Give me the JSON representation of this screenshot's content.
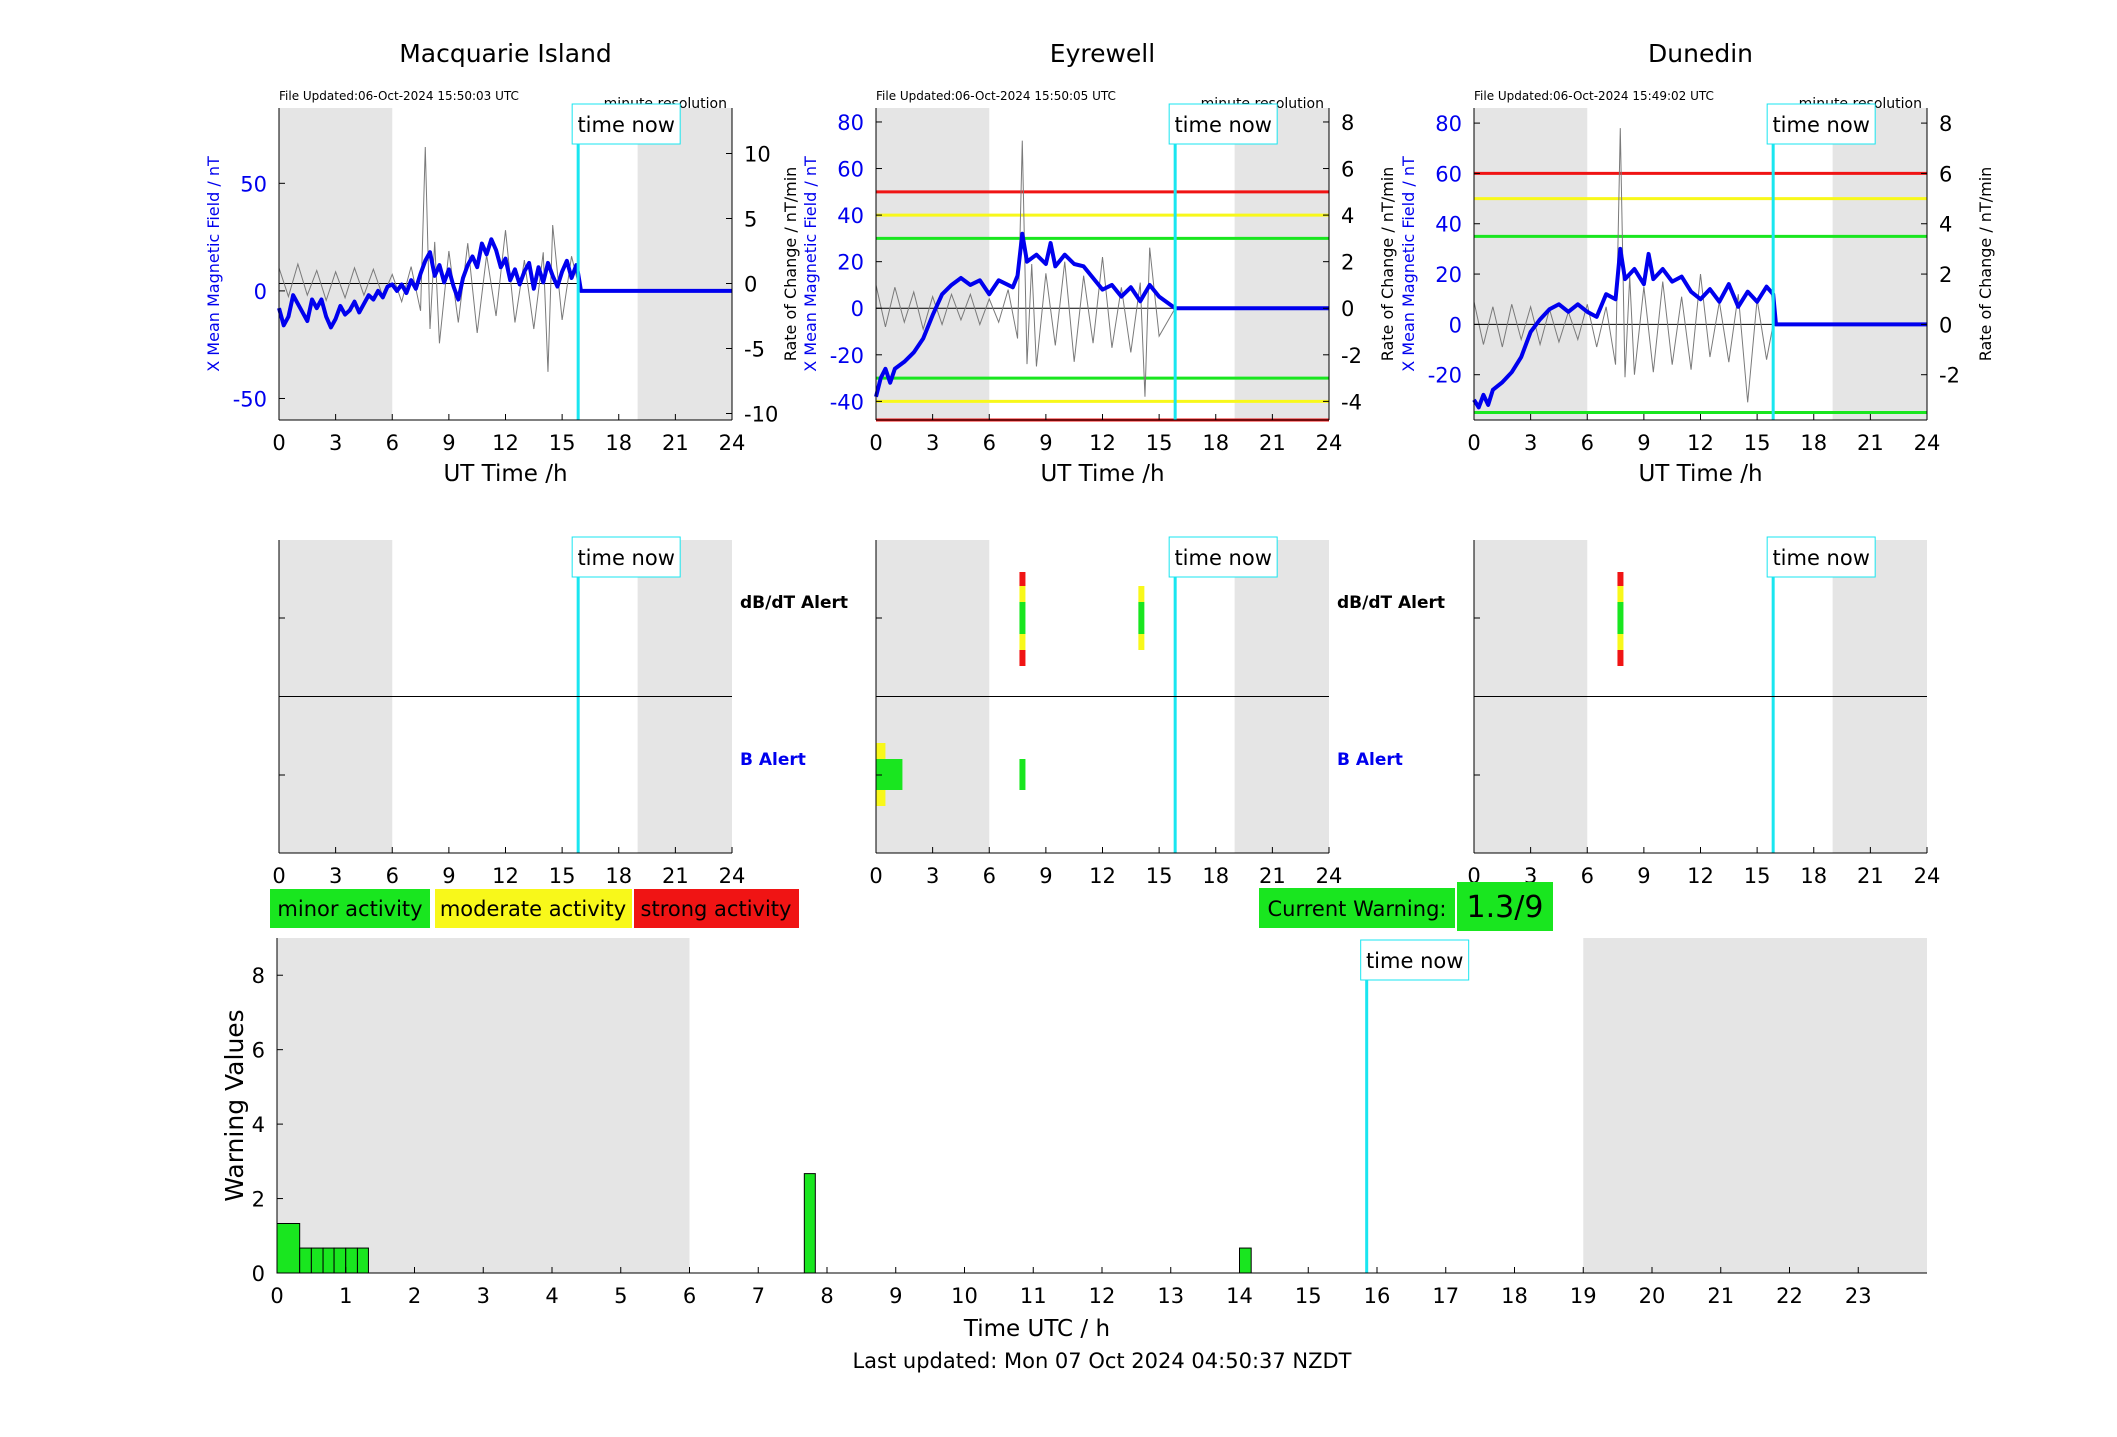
{
  "colors": {
    "night_shade": "#e5e5e5",
    "time_now_line": "#19e6f0",
    "field_line": "#0000ee",
    "rate_line": "#7a7a7a",
    "minor": "#19e61f",
    "moderate": "#f8f81a",
    "strong": "#f01414",
    "axis": "#000000"
  },
  "time_now_label": "time now",
  "stations": [
    {
      "title": "Macquarie Island",
      "file_updated": "File Updated:06-Oct-2024 15:50:03 UTC",
      "resolution": "minute resolution",
      "xlabel": "UT Time /h",
      "ylabel_left": "X Mean Magnetic Field / nT",
      "ylabel_right": "Rate of Change / nT/min",
      "xticks": [
        "0",
        "3",
        "6",
        "9",
        "12",
        "15",
        "18",
        "21",
        "24"
      ],
      "left_ticks": [
        "-50",
        "0",
        "50"
      ],
      "right_ticks": [
        "-10",
        "-5",
        "0",
        "5",
        "10"
      ],
      "alert_xticks": [
        "0",
        "3",
        "6",
        "9",
        "12",
        "15",
        "18",
        "21",
        "24"
      ],
      "dbdt_label": "dB/dT Alert",
      "b_label": "B Alert"
    },
    {
      "title": "Eyrewell",
      "file_updated": "File Updated:06-Oct-2024 15:50:05 UTC",
      "resolution": "minute resolution",
      "xlabel": "UT Time /h",
      "ylabel_left": "X Mean Magnetic Field / nT",
      "ylabel_right": "Rate of Change / nT/min",
      "xticks": [
        "0",
        "3",
        "6",
        "9",
        "12",
        "15",
        "18",
        "21",
        "24"
      ],
      "left_ticks": [
        "-40",
        "-20",
        "0",
        "20",
        "40",
        "60",
        "80"
      ],
      "right_ticks": [
        "-4",
        "-2",
        "0",
        "2",
        "4",
        "6",
        "8"
      ],
      "alert_xticks": [
        "0",
        "3",
        "6",
        "9",
        "12",
        "15",
        "18",
        "21",
        "24"
      ],
      "dbdt_label": "dB/dT Alert",
      "b_label": "B Alert"
    },
    {
      "title": "Dunedin",
      "file_updated": "File Updated:06-Oct-2024 15:49:02 UTC",
      "resolution": "minute resolution",
      "xlabel": "UT Time /h",
      "ylabel_left": "X Mean Magnetic Field / nT",
      "ylabel_right": "Rate of Change / nT/min",
      "xticks": [
        "0",
        "3",
        "6",
        "9",
        "12",
        "15",
        "18",
        "21",
        "24"
      ],
      "left_ticks": [
        "-20",
        "0",
        "20",
        "40",
        "60",
        "80"
      ],
      "right_ticks": [
        "-2",
        "0",
        "2",
        "4",
        "6",
        "8"
      ],
      "alert_xticks": [
        "0",
        "3",
        "6",
        "9",
        "12",
        "15",
        "18",
        "21",
        "24"
      ],
      "dbdt_label": "",
      "b_label": ""
    }
  ],
  "legend": {
    "minor": "minor activity",
    "moderate": "moderate activity",
    "strong": "strong activity"
  },
  "current_warning": {
    "label": "Current Warning:",
    "value": "1.3/9"
  },
  "bottom": {
    "ylabel": "Warning Values",
    "xlabel": "Time UTC / h",
    "last_updated": "Last updated: Mon 07 Oct 2024 04:50:37 NZDT",
    "xticks": [
      "0",
      "1",
      "2",
      "3",
      "4",
      "5",
      "6",
      "7",
      "8",
      "9",
      "10",
      "11",
      "12",
      "13",
      "14",
      "15",
      "16",
      "17",
      "18",
      "19",
      "20",
      "21",
      "22",
      "23"
    ],
    "yticks": [
      "0",
      "2",
      "4",
      "6",
      "8"
    ]
  },
  "chart_data": [
    {
      "type": "line",
      "title": "Macquarie Island",
      "xlabel": "UT Time /h",
      "ylabel": "X Mean Magnetic Field / nT",
      "y2label": "Rate of Change / nT/min",
      "xlim": [
        0,
        24
      ],
      "ylim": [
        -60,
        85
      ],
      "y2lim": [
        -10.5,
        13.5
      ],
      "night_shading": [
        [
          0,
          6
        ],
        [
          19,
          24
        ]
      ],
      "time_now": 15.85,
      "thresholds": [],
      "series": [
        {
          "name": "X Mean Magnetic Field / nT",
          "x": [
            0,
            0.25,
            0.5,
            0.75,
            1,
            1.25,
            1.5,
            1.75,
            2,
            2.25,
            2.5,
            2.75,
            3,
            3.25,
            3.5,
            3.75,
            4,
            4.25,
            4.5,
            4.75,
            5,
            5.25,
            5.5,
            5.75,
            6,
            6.25,
            6.5,
            6.75,
            7,
            7.25,
            7.5,
            7.75,
            8,
            8.25,
            8.5,
            8.75,
            9,
            9.25,
            9.5,
            9.75,
            10,
            10.25,
            10.5,
            10.75,
            11,
            11.25,
            11.5,
            11.75,
            12,
            12.25,
            12.5,
            12.75,
            13,
            13.25,
            13.5,
            13.75,
            14,
            14.25,
            14.5,
            14.75,
            15,
            15.25,
            15.5,
            15.75,
            15.85,
            16,
            24
          ],
          "y": [
            -8,
            -16,
            -12,
            -2,
            -6,
            -10,
            -14,
            -4,
            -8,
            -4,
            -12,
            -17,
            -13,
            -7,
            -11,
            -9,
            -5,
            -10,
            -6,
            -2,
            -4,
            0,
            -3,
            2,
            3,
            0,
            3,
            -1,
            5,
            1,
            8,
            14,
            18,
            7,
            12,
            4,
            10,
            2,
            -4,
            6,
            12,
            16,
            11,
            22,
            17,
            24,
            19,
            11,
            15,
            5,
            10,
            3,
            9,
            13,
            1,
            11,
            4,
            13,
            7,
            2,
            9,
            14,
            6,
            12,
            8,
            0,
            0
          ]
        },
        {
          "name": "Rate of Change / nT/min",
          "x": [
            0,
            0.5,
            1,
            1.5,
            2,
            2.5,
            3,
            3.5,
            4,
            4.5,
            5,
            5.5,
            6,
            6.5,
            7,
            7.5,
            7.75,
            8,
            8.25,
            8.5,
            9,
            9.5,
            10,
            10.5,
            11,
            11.5,
            12,
            12.5,
            13,
            13.5,
            14,
            14.25,
            14.5,
            15,
            15.5,
            15.85
          ],
          "y": [
            1.2,
            -1.0,
            1.5,
            -0.9,
            1.0,
            -1.3,
            0.9,
            -1.1,
            1.2,
            -0.9,
            1.1,
            -1.0,
            0.7,
            -1.4,
            1.3,
            -2.1,
            10.5,
            -3.5,
            3.2,
            -4.6,
            2.5,
            -3.0,
            3.1,
            -3.8,
            2.2,
            -2.5,
            4.1,
            -3.0,
            1.8,
            -3.5,
            2.4,
            -6.8,
            4.5,
            -2.8,
            2.1,
            0
          ]
        }
      ]
    },
    {
      "type": "line",
      "title": "Eyrewell",
      "xlabel": "UT Time /h",
      "ylabel": "X Mean Magnetic Field / nT",
      "y2label": "Rate of Change / nT/min",
      "xlim": [
        0,
        24
      ],
      "ylim": [
        -48,
        86
      ],
      "y2lim": [
        -4.8,
        8.6
      ],
      "night_shading": [
        [
          0,
          6
        ],
        [
          19,
          24
        ]
      ],
      "time_now": 15.85,
      "thresholds": [
        {
          "value": 50,
          "level": "strong"
        },
        {
          "value": 40,
          "level": "moderate"
        },
        {
          "value": 30,
          "level": "minor"
        },
        {
          "value": -30,
          "level": "minor"
        },
        {
          "value": -40,
          "level": "moderate"
        },
        {
          "value": -48,
          "level": "strong"
        }
      ],
      "series": [
        {
          "name": "X Mean Magnetic Field / nT",
          "x": [
            0,
            0.25,
            0.5,
            0.75,
            1,
            1.5,
            2,
            2.5,
            3,
            3.5,
            4,
            4.5,
            5,
            5.5,
            6,
            6.5,
            7,
            7.25,
            7.5,
            7.75,
            8,
            8.5,
            9,
            9.25,
            9.5,
            10,
            10.5,
            11,
            11.5,
            12,
            12.5,
            13,
            13.5,
            14,
            14.5,
            15,
            15.85,
            16,
            24
          ],
          "y": [
            -38,
            -30,
            -26,
            -32,
            -26,
            -23,
            -19,
            -13,
            -3,
            6,
            10,
            13,
            10,
            12,
            6,
            12,
            10,
            9,
            14,
            32,
            20,
            23,
            19,
            28,
            18,
            23,
            19,
            18,
            13,
            8,
            10,
            5,
            9,
            3,
            10,
            5,
            0,
            0,
            0
          ]
        },
        {
          "name": "Rate of Change / nT/min",
          "x": [
            0,
            0.5,
            1,
            1.5,
            2,
            2.5,
            3,
            3.5,
            4,
            4.5,
            5,
            5.5,
            6,
            6.5,
            7,
            7.5,
            7.75,
            8,
            8.25,
            8.5,
            9,
            9.5,
            10,
            10.5,
            11,
            11.5,
            12,
            12.5,
            13,
            13.5,
            14,
            14.25,
            14.5,
            15,
            15.85
          ],
          "y": [
            1.0,
            -0.8,
            0.9,
            -0.6,
            0.7,
            -0.9,
            0.5,
            -0.7,
            0.6,
            -0.5,
            0.6,
            -0.7,
            0.4,
            -0.6,
            0.8,
            -1.3,
            7.2,
            -2.4,
            1.9,
            -2.5,
            1.5,
            -1.6,
            2.0,
            -2.3,
            1.4,
            -1.5,
            2.2,
            -1.7,
            0.9,
            -1.9,
            1.1,
            -3.8,
            2.6,
            -1.2,
            0
          ]
        }
      ]
    },
    {
      "type": "line",
      "title": "Dunedin",
      "xlabel": "UT Time /h",
      "ylabel": "X Mean Magnetic Field / nT",
      "y2label": "Rate of Change / nT/min",
      "xlim": [
        0,
        24
      ],
      "ylim": [
        -38,
        86
      ],
      "y2lim": [
        -3.8,
        8.6
      ],
      "night_shading": [
        [
          0,
          6
        ],
        [
          19,
          24
        ]
      ],
      "time_now": 15.85,
      "thresholds": [
        {
          "value": 60,
          "level": "strong"
        },
        {
          "value": 50,
          "level": "moderate"
        },
        {
          "value": 35,
          "level": "minor"
        },
        {
          "value": -35,
          "level": "minor"
        }
      ],
      "series": [
        {
          "name": "X Mean Magnetic Field / nT",
          "x": [
            0,
            0.25,
            0.5,
            0.75,
            1,
            1.5,
            2,
            2.5,
            3,
            3.5,
            4,
            4.5,
            5,
            5.5,
            6,
            6.5,
            7,
            7.5,
            7.75,
            8,
            8.5,
            9,
            9.25,
            9.5,
            10,
            10.5,
            11,
            11.5,
            12,
            12.5,
            13,
            13.5,
            14,
            14.5,
            15,
            15.5,
            15.85,
            16,
            24
          ],
          "y": [
            -30,
            -33,
            -28,
            -32,
            -26,
            -23,
            -19,
            -13,
            -3,
            2,
            6,
            8,
            5,
            8,
            5,
            3,
            12,
            10,
            30,
            18,
            22,
            16,
            28,
            18,
            22,
            17,
            19,
            13,
            10,
            14,
            9,
            16,
            7,
            13,
            9,
            15,
            12,
            0,
            0
          ]
        },
        {
          "name": "Rate of Change / nT/min",
          "x": [
            0,
            0.5,
            1,
            1.5,
            2,
            2.5,
            3,
            3.5,
            4,
            4.5,
            5,
            5.5,
            6,
            6.5,
            7,
            7.5,
            7.75,
            8,
            8.25,
            8.5,
            9,
            9.5,
            10,
            10.5,
            11,
            11.5,
            12,
            12.5,
            13,
            13.5,
            14,
            14.5,
            15,
            15.5,
            15.85
          ],
          "y": [
            0.9,
            -0.8,
            0.7,
            -0.9,
            0.8,
            -0.6,
            0.7,
            -0.8,
            0.6,
            -0.7,
            0.5,
            -0.6,
            0.8,
            -0.9,
            0.7,
            -1.6,
            7.8,
            -2.1,
            1.9,
            -2.0,
            1.5,
            -1.9,
            1.7,
            -1.6,
            1.1,
            -1.8,
            2.0,
            -1.3,
            0.9,
            -1.5,
            1.2,
            -3.1,
            1.0,
            -1.4,
            0
          ]
        }
      ]
    },
    {
      "type": "bar",
      "title": "",
      "xlabel": "Time UTC / h",
      "ylabel": "Warning Values",
      "xlim": [
        0,
        24
      ],
      "ylim": [
        0,
        9
      ],
      "night_shading": [
        [
          0,
          6
        ],
        [
          19,
          24
        ]
      ],
      "time_now": 15.85,
      "bars": [
        {
          "x0": 0.0,
          "x1": 0.33,
          "value": 1.33
        },
        {
          "x0": 0.33,
          "x1": 0.5,
          "value": 0.67
        },
        {
          "x0": 0.5,
          "x1": 0.67,
          "value": 0.67
        },
        {
          "x0": 0.67,
          "x1": 0.83,
          "value": 0.67
        },
        {
          "x0": 0.83,
          "x1": 1.0,
          "value": 0.67
        },
        {
          "x0": 1.0,
          "x1": 1.17,
          "value": 0.67
        },
        {
          "x0": 1.17,
          "x1": 1.33,
          "value": 0.67
        },
        {
          "x0": 7.67,
          "x1": 7.83,
          "value": 2.67
        },
        {
          "x0": 14.0,
          "x1": 14.17,
          "value": 0.67
        }
      ]
    },
    {
      "type": "heatmap",
      "title": "Alerts",
      "rows": [
        "dB/dT Alert",
        "B Alert"
      ],
      "xlim": [
        0,
        24
      ],
      "stations": [
        {
          "name": "Macquarie Island",
          "dbdt_alerts": [],
          "b_alerts": []
        },
        {
          "name": "Eyrewell",
          "dbdt_alerts": [
            {
              "x0": 7.6,
              "x1": 7.85,
              "level": "strong"
            },
            {
              "x0": 13.9,
              "x1": 14.15,
              "level": "moderate"
            }
          ],
          "b_alerts": [
            {
              "x0": 0.0,
              "x1": 0.5,
              "level": "moderate"
            },
            {
              "x0": 0.0,
              "x1": 1.4,
              "level": "minor"
            },
            {
              "x0": 7.6,
              "x1": 7.85,
              "level": "minor"
            }
          ]
        },
        {
          "name": "Dunedin",
          "dbdt_alerts": [
            {
              "x0": 7.6,
              "x1": 7.85,
              "level": "strong"
            }
          ],
          "b_alerts": []
        }
      ]
    }
  ]
}
